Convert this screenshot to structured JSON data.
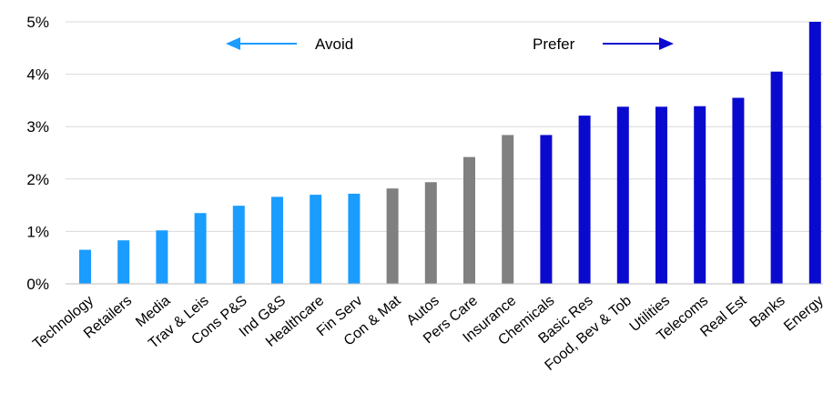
{
  "chart_data": {
    "type": "bar",
    "categories": [
      "Technology",
      "Retailers",
      "Media",
      "Trav & Leis",
      "Cons P&S",
      "Ind G&S",
      "Healthcare",
      "Fin Serv",
      "Con & Mat",
      "Autos",
      "Pers Care",
      "Insurance",
      "Chemicals",
      "Basic Res",
      "Food, Bev & Tob",
      "Utilities",
      "Telecoms",
      "Real Est",
      "Banks",
      "Energy"
    ],
    "values": [
      0.65,
      0.83,
      1.02,
      1.35,
      1.49,
      1.66,
      1.7,
      1.72,
      1.82,
      1.94,
      2.42,
      2.84,
      2.84,
      3.21,
      3.38,
      3.38,
      3.39,
      3.55,
      4.05,
      5.0
    ],
    "groups": [
      "avoid",
      "avoid",
      "avoid",
      "avoid",
      "avoid",
      "avoid",
      "avoid",
      "avoid",
      "neutral",
      "neutral",
      "neutral",
      "neutral",
      "prefer",
      "prefer",
      "prefer",
      "prefer",
      "prefer",
      "prefer",
      "prefer",
      "prefer"
    ],
    "colors": {
      "avoid": "#1B9CFF",
      "neutral": "#808080",
      "prefer": "#0A0ACF"
    },
    "ylim": [
      0,
      5
    ],
    "yticks": [
      "0%",
      "1%",
      "2%",
      "3%",
      "4%",
      "5%"
    ],
    "grid": true,
    "annotations": {
      "avoid": "Avoid",
      "prefer": "Prefer"
    }
  }
}
